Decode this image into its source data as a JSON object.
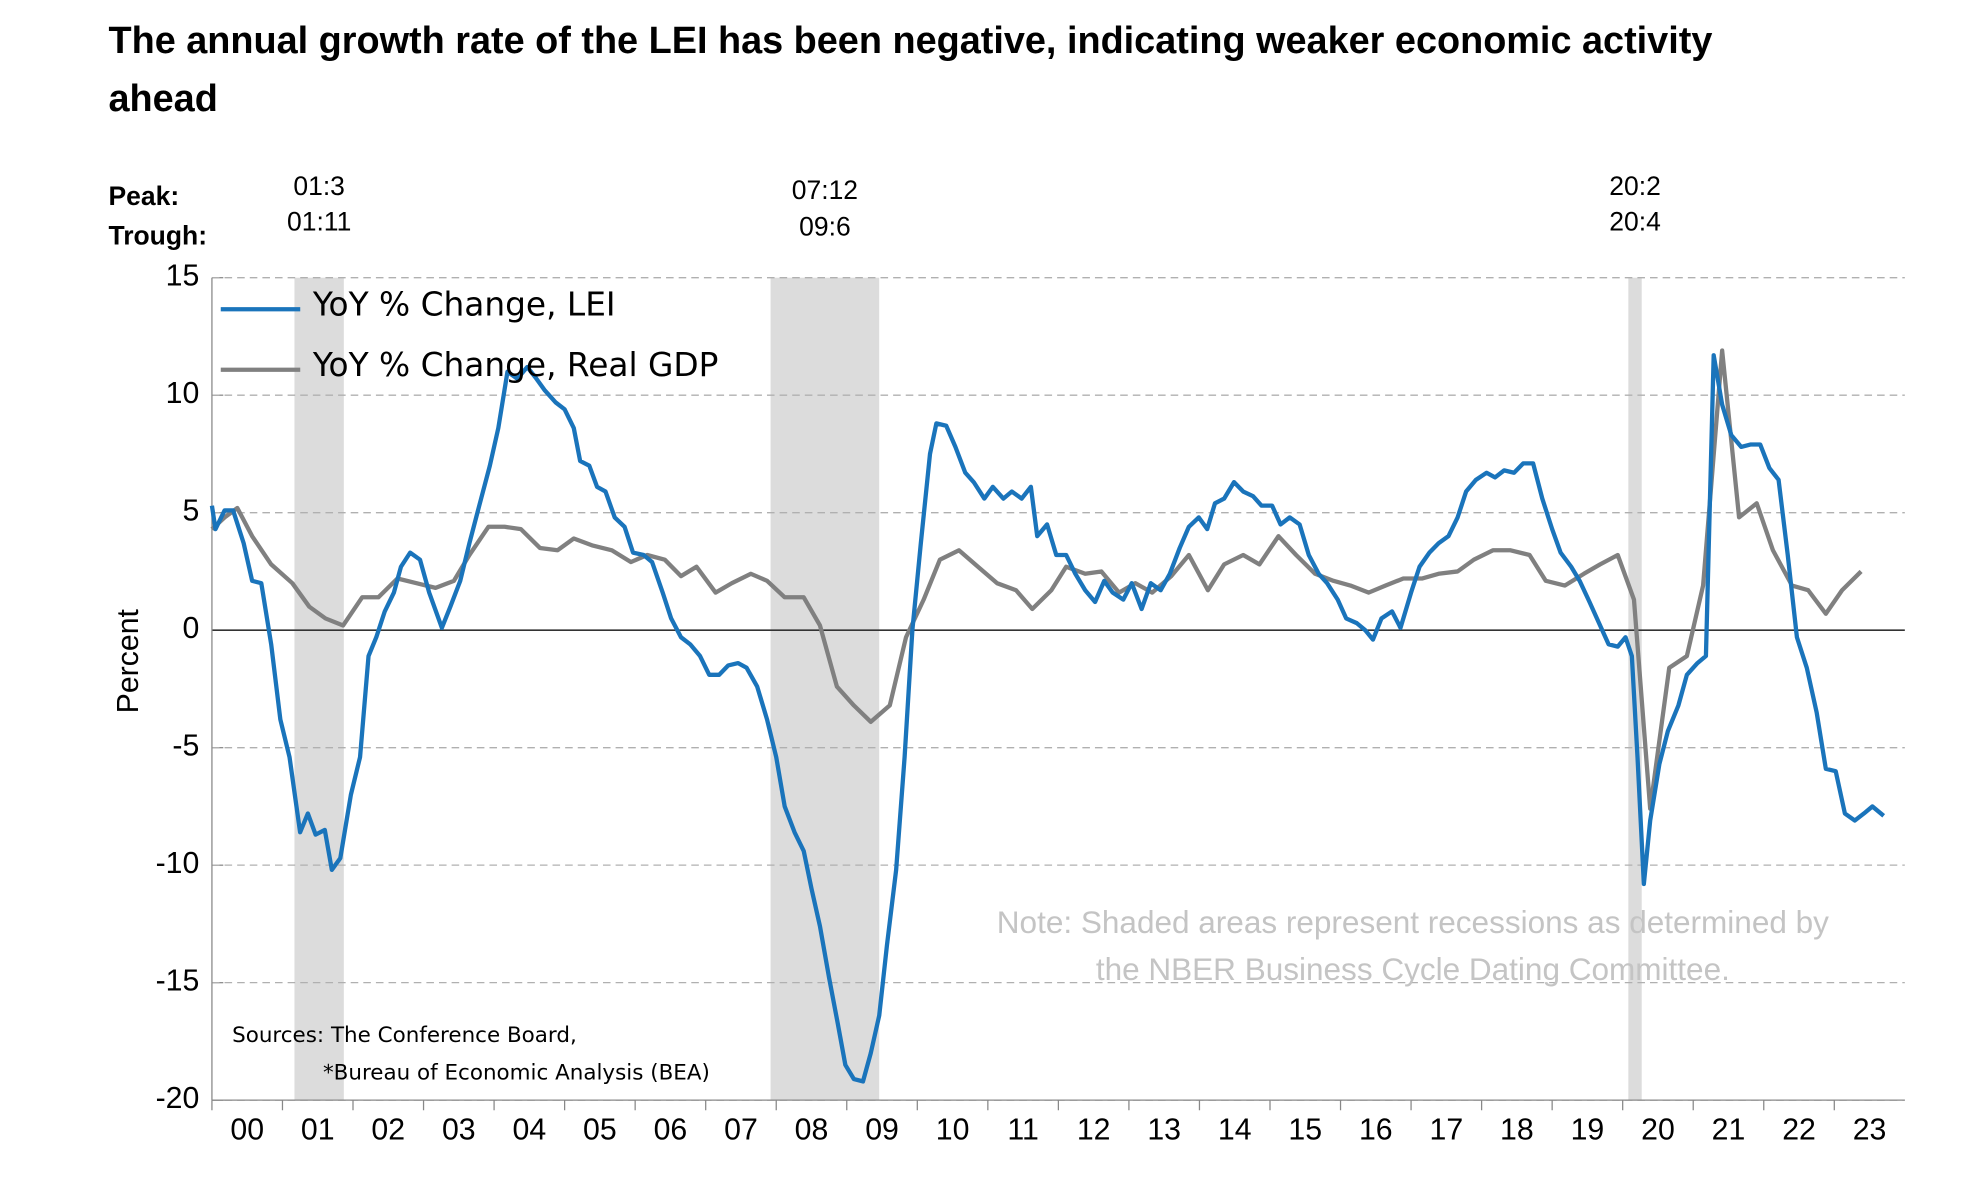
{
  "chart_data": {
    "type": "line",
    "title": [
      "The annual growth rate of the LEI has been negative, indicating weaker economic activity",
      "ahead"
    ],
    "y_label": "Percent",
    "xlim": [
      2000,
      2024
    ],
    "xticks": [
      {
        "value": 2000,
        "label": "00"
      },
      {
        "value": 2001,
        "label": "01"
      },
      {
        "value": 2002,
        "label": "02"
      },
      {
        "value": 2003,
        "label": "03"
      },
      {
        "value": 2004,
        "label": "04"
      },
      {
        "value": 2005,
        "label": "05"
      },
      {
        "value": 2006,
        "label": "06"
      },
      {
        "value": 2007,
        "label": "07"
      },
      {
        "value": 2008,
        "label": "08"
      },
      {
        "value": 2009,
        "label": "09"
      },
      {
        "value": 2010,
        "label": "10"
      },
      {
        "value": 2011,
        "label": "11"
      },
      {
        "value": 2012,
        "label": "12"
      },
      {
        "value": 2013,
        "label": "13"
      },
      {
        "value": 2014,
        "label": "14"
      },
      {
        "value": 2015,
        "label": "15"
      },
      {
        "value": 2016,
        "label": "16"
      },
      {
        "value": 2017,
        "label": "17"
      },
      {
        "value": 2018,
        "label": "18"
      },
      {
        "value": 2019,
        "label": "19"
      },
      {
        "value": 2020,
        "label": "20"
      },
      {
        "value": 2021,
        "label": "21"
      },
      {
        "value": 2022,
        "label": "22"
      },
      {
        "value": 2023,
        "label": "23"
      }
    ],
    "ylim": [
      -20,
      15
    ],
    "yticks": [
      15,
      10,
      5,
      0,
      -5,
      -10,
      -15,
      -20
    ],
    "grid": true,
    "legend": "upper left",
    "recession_header": {
      "peak": "Peak:",
      "trough": "Trough:"
    },
    "recessions": [
      {
        "peak": "01:3",
        "trough": "01:11",
        "xrange": [
          2001.17,
          2001.87
        ]
      },
      {
        "peak": "07:12",
        "trough": "09:6",
        "xrange": [
          2007.92,
          2009.46
        ]
      },
      {
        "peak": "20:2",
        "trough": "20:4",
        "xrange": [
          2020.08,
          2020.27
        ]
      }
    ],
    "note": [
      "Note: Shaded areas represent recessions as determined by",
      "the NBER Business Cycle Dating Committee."
    ],
    "sources": [
      "Sources: The Conference Board,",
      "*Bureau of Economic Analysis (BEA)"
    ],
    "series": [
      {
        "name": "YoY % Change, LEI",
        "color": "#1a74bb",
        "x": [
          2000.0,
          2000.05,
          2000.18,
          2000.3,
          2000.45,
          2000.57,
          2000.7,
          2000.84,
          2000.97,
          2001.1,
          2001.25,
          2001.36,
          2001.47,
          2001.6,
          2001.7,
          2001.82,
          2001.97,
          2002.1,
          2002.22,
          2002.33,
          2002.45,
          2002.58,
          2002.68,
          2002.81,
          2002.95,
          2003.08,
          2003.26,
          2003.38,
          2003.52,
          2003.65,
          2003.79,
          2003.94,
          2004.06,
          2004.19,
          2004.33,
          2004.47,
          2004.6,
          2004.72,
          2004.87,
          2005.0,
          2005.13,
          2005.22,
          2005.35,
          2005.46,
          2005.58,
          2005.71,
          2005.85,
          2005.97,
          2006.12,
          2006.24,
          2006.39,
          2006.51,
          2006.65,
          2006.78,
          2006.92,
          2007.05,
          2007.19,
          2007.32,
          2007.46,
          2007.58,
          2007.73,
          2007.87,
          2008.0,
          2008.12,
          2008.26,
          2008.39,
          2008.5,
          2008.62,
          2008.75,
          2008.87,
          2008.98,
          2009.1,
          2009.23,
          2009.34,
          2009.46,
          2009.57,
          2009.7,
          2009.82,
          2009.93,
          2010.05,
          2010.18,
          2010.27,
          2010.41,
          2010.54,
          2010.68,
          2010.8,
          2010.95,
          2011.07,
          2011.22,
          2011.34,
          2011.48,
          2011.61,
          2011.7,
          2011.84,
          2011.97,
          2012.11,
          2012.24,
          2012.38,
          2012.52,
          2012.65,
          2012.77,
          2012.92,
          2013.04,
          2013.18,
          2013.31,
          2013.45,
          2013.58,
          2013.72,
          2013.85,
          2013.99,
          2014.11,
          2014.22,
          2014.35,
          2014.49,
          2014.62,
          2014.76,
          2014.88,
          2015.03,
          2015.15,
          2015.28,
          2015.42,
          2015.55,
          2015.69,
          2015.81,
          2015.96,
          2016.08,
          2016.23,
          2016.35,
          2016.46,
          2016.58,
          2016.73,
          2016.85,
          2017.0,
          2017.12,
          2017.26,
          2017.39,
          2017.53,
          2017.66,
          2017.78,
          2017.92,
          2018.07,
          2018.19,
          2018.32,
          2018.46,
          2018.59,
          2018.73,
          2018.86,
          2019.0,
          2019.12,
          2019.27,
          2019.39,
          2019.53,
          2019.68,
          2019.8,
          2019.93,
          2020.04,
          2020.13,
          2020.21,
          2020.3,
          2020.39,
          2020.52,
          2020.64,
          2020.79,
          2020.91,
          2021.06,
          2021.18,
          2021.29,
          2021.41,
          2021.54,
          2021.68,
          2021.81,
          2021.95,
          2022.08,
          2022.21,
          2022.34,
          2022.47,
          2022.61,
          2022.75,
          2022.88,
          2023.02,
          2023.15,
          2023.29,
          2023.42,
          2023.54,
          2023.7
        ],
        "values": [
          5.3,
          4.3,
          5.1,
          5.1,
          3.7,
          2.1,
          2.0,
          -0.6,
          -3.8,
          -5.4,
          -8.6,
          -7.8,
          -8.7,
          -8.5,
          -10.2,
          -9.7,
          -7.0,
          -5.4,
          -1.1,
          -0.3,
          0.8,
          1.6,
          2.7,
          3.3,
          3.0,
          1.6,
          0.1,
          1.0,
          2.1,
          3.7,
          5.3,
          7.0,
          8.6,
          11.0,
          10.7,
          11.2,
          10.7,
          10.2,
          9.7,
          9.4,
          8.6,
          7.2,
          7.0,
          6.1,
          5.9,
          4.8,
          4.4,
          3.3,
          3.2,
          2.9,
          1.6,
          0.5,
          -0.3,
          -0.6,
          -1.1,
          -1.9,
          -1.9,
          -1.5,
          -1.4,
          -1.6,
          -2.4,
          -3.8,
          -5.4,
          -7.5,
          -8.6,
          -9.4,
          -11.0,
          -12.6,
          -14.8,
          -16.7,
          -18.5,
          -19.1,
          -19.2,
          -18.0,
          -16.4,
          -13.4,
          -10.2,
          -5.4,
          0.0,
          3.7,
          7.5,
          8.8,
          8.7,
          7.8,
          6.7,
          6.3,
          5.6,
          6.1,
          5.6,
          5.9,
          5.6,
          6.1,
          4.0,
          4.5,
          3.2,
          3.2,
          2.4,
          1.7,
          1.2,
          2.1,
          1.6,
          1.3,
          2.0,
          0.9,
          2.0,
          1.7,
          2.4,
          3.5,
          4.4,
          4.8,
          4.3,
          5.4,
          5.6,
          6.3,
          5.9,
          5.7,
          5.3,
          5.3,
          4.5,
          4.8,
          4.5,
          3.2,
          2.4,
          2.0,
          1.3,
          0.5,
          0.3,
          0.0,
          -0.4,
          0.5,
          0.8,
          0.1,
          1.6,
          2.7,
          3.3,
          3.7,
          4.0,
          4.8,
          5.9,
          6.4,
          6.7,
          6.5,
          6.8,
          6.7,
          7.1,
          7.1,
          5.6,
          4.3,
          3.3,
          2.7,
          2.1,
          1.2,
          0.2,
          -0.6,
          -0.7,
          -0.3,
          -1.1,
          -5.4,
          -10.8,
          -8.1,
          -5.7,
          -4.3,
          -3.2,
          -1.9,
          -1.4,
          -1.1,
          11.7,
          9.6,
          8.3,
          7.8,
          7.9,
          7.9,
          6.9,
          6.4,
          3.2,
          -0.3,
          -1.6,
          -3.5,
          -5.9,
          -6.0,
          -7.8,
          -8.1,
          -7.8,
          -7.5,
          -7.9
        ]
      },
      {
        "name": "YoY % Change, Real GDP",
        "color": "#808080",
        "x": [
          2000.0,
          2000.18,
          2000.36,
          2000.57,
          2000.84,
          2001.14,
          2001.38,
          2001.61,
          2001.86,
          2002.13,
          2002.36,
          2002.63,
          2002.9,
          2003.17,
          2003.43,
          2003.65,
          2003.92,
          2004.15,
          2004.38,
          2004.65,
          2004.9,
          2005.13,
          2005.4,
          2005.67,
          2005.94,
          2006.17,
          2006.42,
          2006.65,
          2006.87,
          2007.14,
          2007.37,
          2007.64,
          2007.87,
          2008.12,
          2008.39,
          2008.62,
          2008.86,
          2009.1,
          2009.34,
          2009.61,
          2009.84,
          2010.09,
          2010.32,
          2010.59,
          2010.86,
          2011.13,
          2011.4,
          2011.63,
          2011.9,
          2012.11,
          2012.38,
          2012.61,
          2012.86,
          2013.09,
          2013.33,
          2013.6,
          2013.85,
          2014.12,
          2014.35,
          2014.62,
          2014.85,
          2015.12,
          2015.37,
          2015.64,
          2015.9,
          2016.14,
          2016.4,
          2016.64,
          2016.89,
          2017.16,
          2017.39,
          2017.66,
          2017.89,
          2018.16,
          2018.41,
          2018.68,
          2018.91,
          2019.18,
          2019.45,
          2019.68,
          2019.93,
          2020.16,
          2020.39,
          2020.66,
          2020.91,
          2021.14,
          2021.41,
          2021.65,
          2021.9,
          2022.13,
          2022.4,
          2022.63,
          2022.88,
          2023.11,
          2023.38
        ],
        "values": [
          4.3,
          4.8,
          5.2,
          4.0,
          2.8,
          2.0,
          1.0,
          0.5,
          0.2,
          1.4,
          1.4,
          2.2,
          2.0,
          1.8,
          2.1,
          3.2,
          4.4,
          4.4,
          4.3,
          3.5,
          3.4,
          3.9,
          3.6,
          3.4,
          2.9,
          3.2,
          3.0,
          2.3,
          2.7,
          1.6,
          2.0,
          2.4,
          2.1,
          1.4,
          1.4,
          0.2,
          -2.4,
          -3.2,
          -3.9,
          -3.2,
          -0.3,
          1.3,
          3.0,
          3.4,
          2.7,
          2.0,
          1.7,
          0.9,
          1.7,
          2.7,
          2.4,
          2.5,
          1.6,
          2.0,
          1.6,
          2.3,
          3.2,
          1.7,
          2.8,
          3.2,
          2.8,
          4.0,
          3.2,
          2.4,
          2.1,
          1.9,
          1.6,
          1.9,
          2.2,
          2.2,
          2.4,
          2.5,
          3.0,
          3.4,
          3.4,
          3.2,
          2.1,
          1.9,
          2.4,
          2.8,
          3.2,
          1.3,
          -7.6,
          -1.6,
          -1.1,
          1.9,
          11.9,
          4.8,
          5.4,
          3.4,
          1.9,
          1.7,
          0.7,
          1.7,
          2.5
        ]
      }
    ]
  }
}
